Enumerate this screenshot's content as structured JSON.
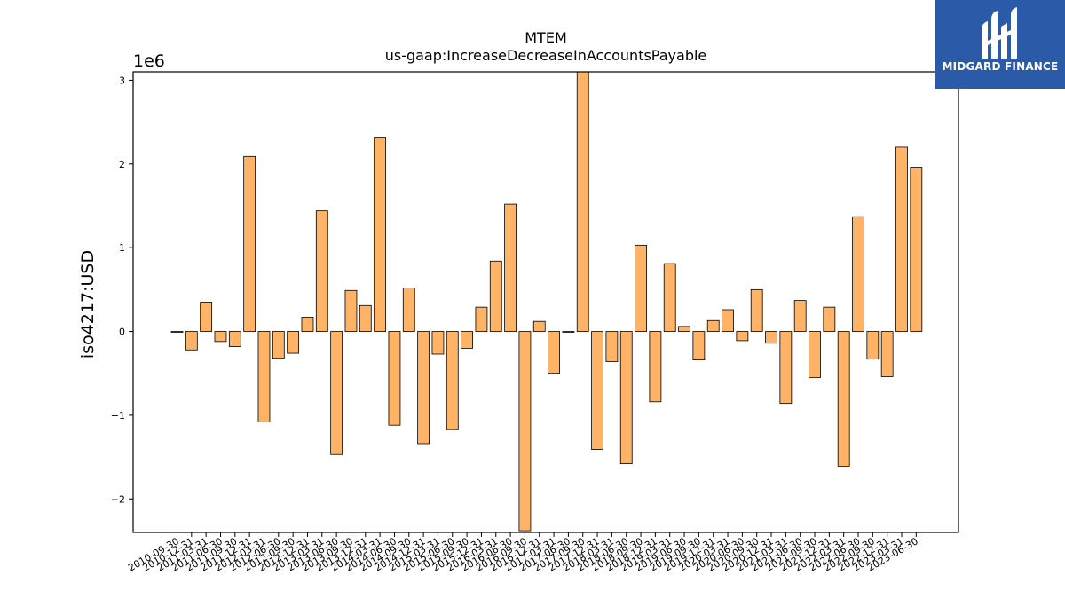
{
  "brand": {
    "name": "MIDGARD FINANCE",
    "logo_icon": "midgard-logo-icon",
    "background_color": "#2b5aa8"
  },
  "chart_data": {
    "type": "bar",
    "title": "MTEM",
    "subtitle": "us-gaap:IncreaseDecreaseInAccountsPayable",
    "ylabel": "iso4217:USD",
    "xlabel": "",
    "y_scale_label": "1e6",
    "ylim": [
      -2.4,
      3.1
    ],
    "yticks": [
      -2,
      -1,
      0,
      1,
      2,
      3
    ],
    "ytick_labels": [
      "−2",
      "−1",
      "0",
      "1",
      "2",
      "3"
    ],
    "bar_color": "#ffb366",
    "bar_edge_color": "#000000",
    "categories": [
      "2010-09-30",
      "2010-12-31",
      "2011-03-31",
      "2011-06-30",
      "2011-09-30",
      "2011-12-31",
      "2012-03-31",
      "2012-06-30",
      "2012-09-30",
      "2012-12-31",
      "2013-03-31",
      "2013-06-30",
      "2013-09-30",
      "2013-12-31",
      "2014-03-31",
      "2014-06-30",
      "2014-09-30",
      "2014-12-31",
      "2015-03-31",
      "2015-06-30",
      "2015-09-30",
      "2015-12-31",
      "2016-03-31",
      "2016-06-30",
      "2016-09-30",
      "2016-12-31",
      "2017-03-31",
      "2017-06-30",
      "2017-09-30",
      "2017-12-31",
      "2018-03-31",
      "2018-06-30",
      "2018-09-30",
      "2018-12-31",
      "2019-03-31",
      "2019-06-30",
      "2019-09-30",
      "2019-12-31",
      "2020-03-31",
      "2020-06-30",
      "2020-09-30",
      "2020-12-31",
      "2021-03-31",
      "2021-06-30",
      "2021-09-30",
      "2021-12-31",
      "2022-03-31",
      "2022-06-30",
      "2022-09-30",
      "2022-12-31",
      "2023-03-31",
      "2023-06-30"
    ],
    "xtick_labels": [
      "2010-09-30",
      "2010-12-31",
      "2011-03-31",
      "2011-06-30",
      "2011-09-30",
      "2011-12-31",
      "2012-03-31",
      "2012-06-30",
      "2012-09-30",
      "2012-12-31",
      "2013-03-31",
      "2013-06-30",
      "2013-09-30",
      "2013-12-31",
      "2014-03-31",
      "2014-06-30",
      "2014-09-30",
      "2014-12-31",
      "2015-03-31",
      "2015-06-30",
      "2015-09-30",
      "2015-12-31",
      "2016-03-31",
      "2016-06-30",
      "2016-09-30",
      "2016-12-31",
      "2017-03-31",
      "2017-06-30",
      "2017-09-30",
      "2017-12-31",
      "2018-03-31",
      "2018-06-30",
      "2018-09-30",
      "2018-12-31",
      "2019-03-31",
      "2019-06-30",
      "2019-09-30",
      "2019-12-31",
      "2020-03-31",
      "2020-06-30",
      "2020-09-30",
      "2020-12-31",
      "2021-03-31",
      "2021-06-30",
      "2021-09-30",
      "2021-12-31",
      "2022-03-31",
      "2022-06-30",
      "2022-09-30",
      "2022-12-31",
      "2023-03-31",
      "2023-06-30"
    ],
    "values": [
      -0.01,
      -0.22,
      0.35,
      -0.12,
      -0.18,
      2.09,
      -1.08,
      -0.32,
      -0.26,
      0.17,
      1.44,
      -1.47,
      0.49,
      0.31,
      2.32,
      -1.12,
      0.52,
      -1.34,
      -0.27,
      -1.17,
      -0.2,
      0.29,
      0.84,
      1.52,
      -2.38,
      0.12,
      -0.5,
      -0.01,
      3.2,
      -1.41,
      -0.36,
      -1.58,
      1.03,
      -0.84,
      0.81,
      0.06,
      -0.34,
      0.13,
      0.26,
      -0.11,
      0.5,
      -0.14,
      -0.86,
      0.37,
      -0.55,
      0.29,
      -1.61,
      1.37,
      -0.33,
      -0.54,
      2.2,
      1.96
    ],
    "grid": false,
    "legend": "none"
  }
}
